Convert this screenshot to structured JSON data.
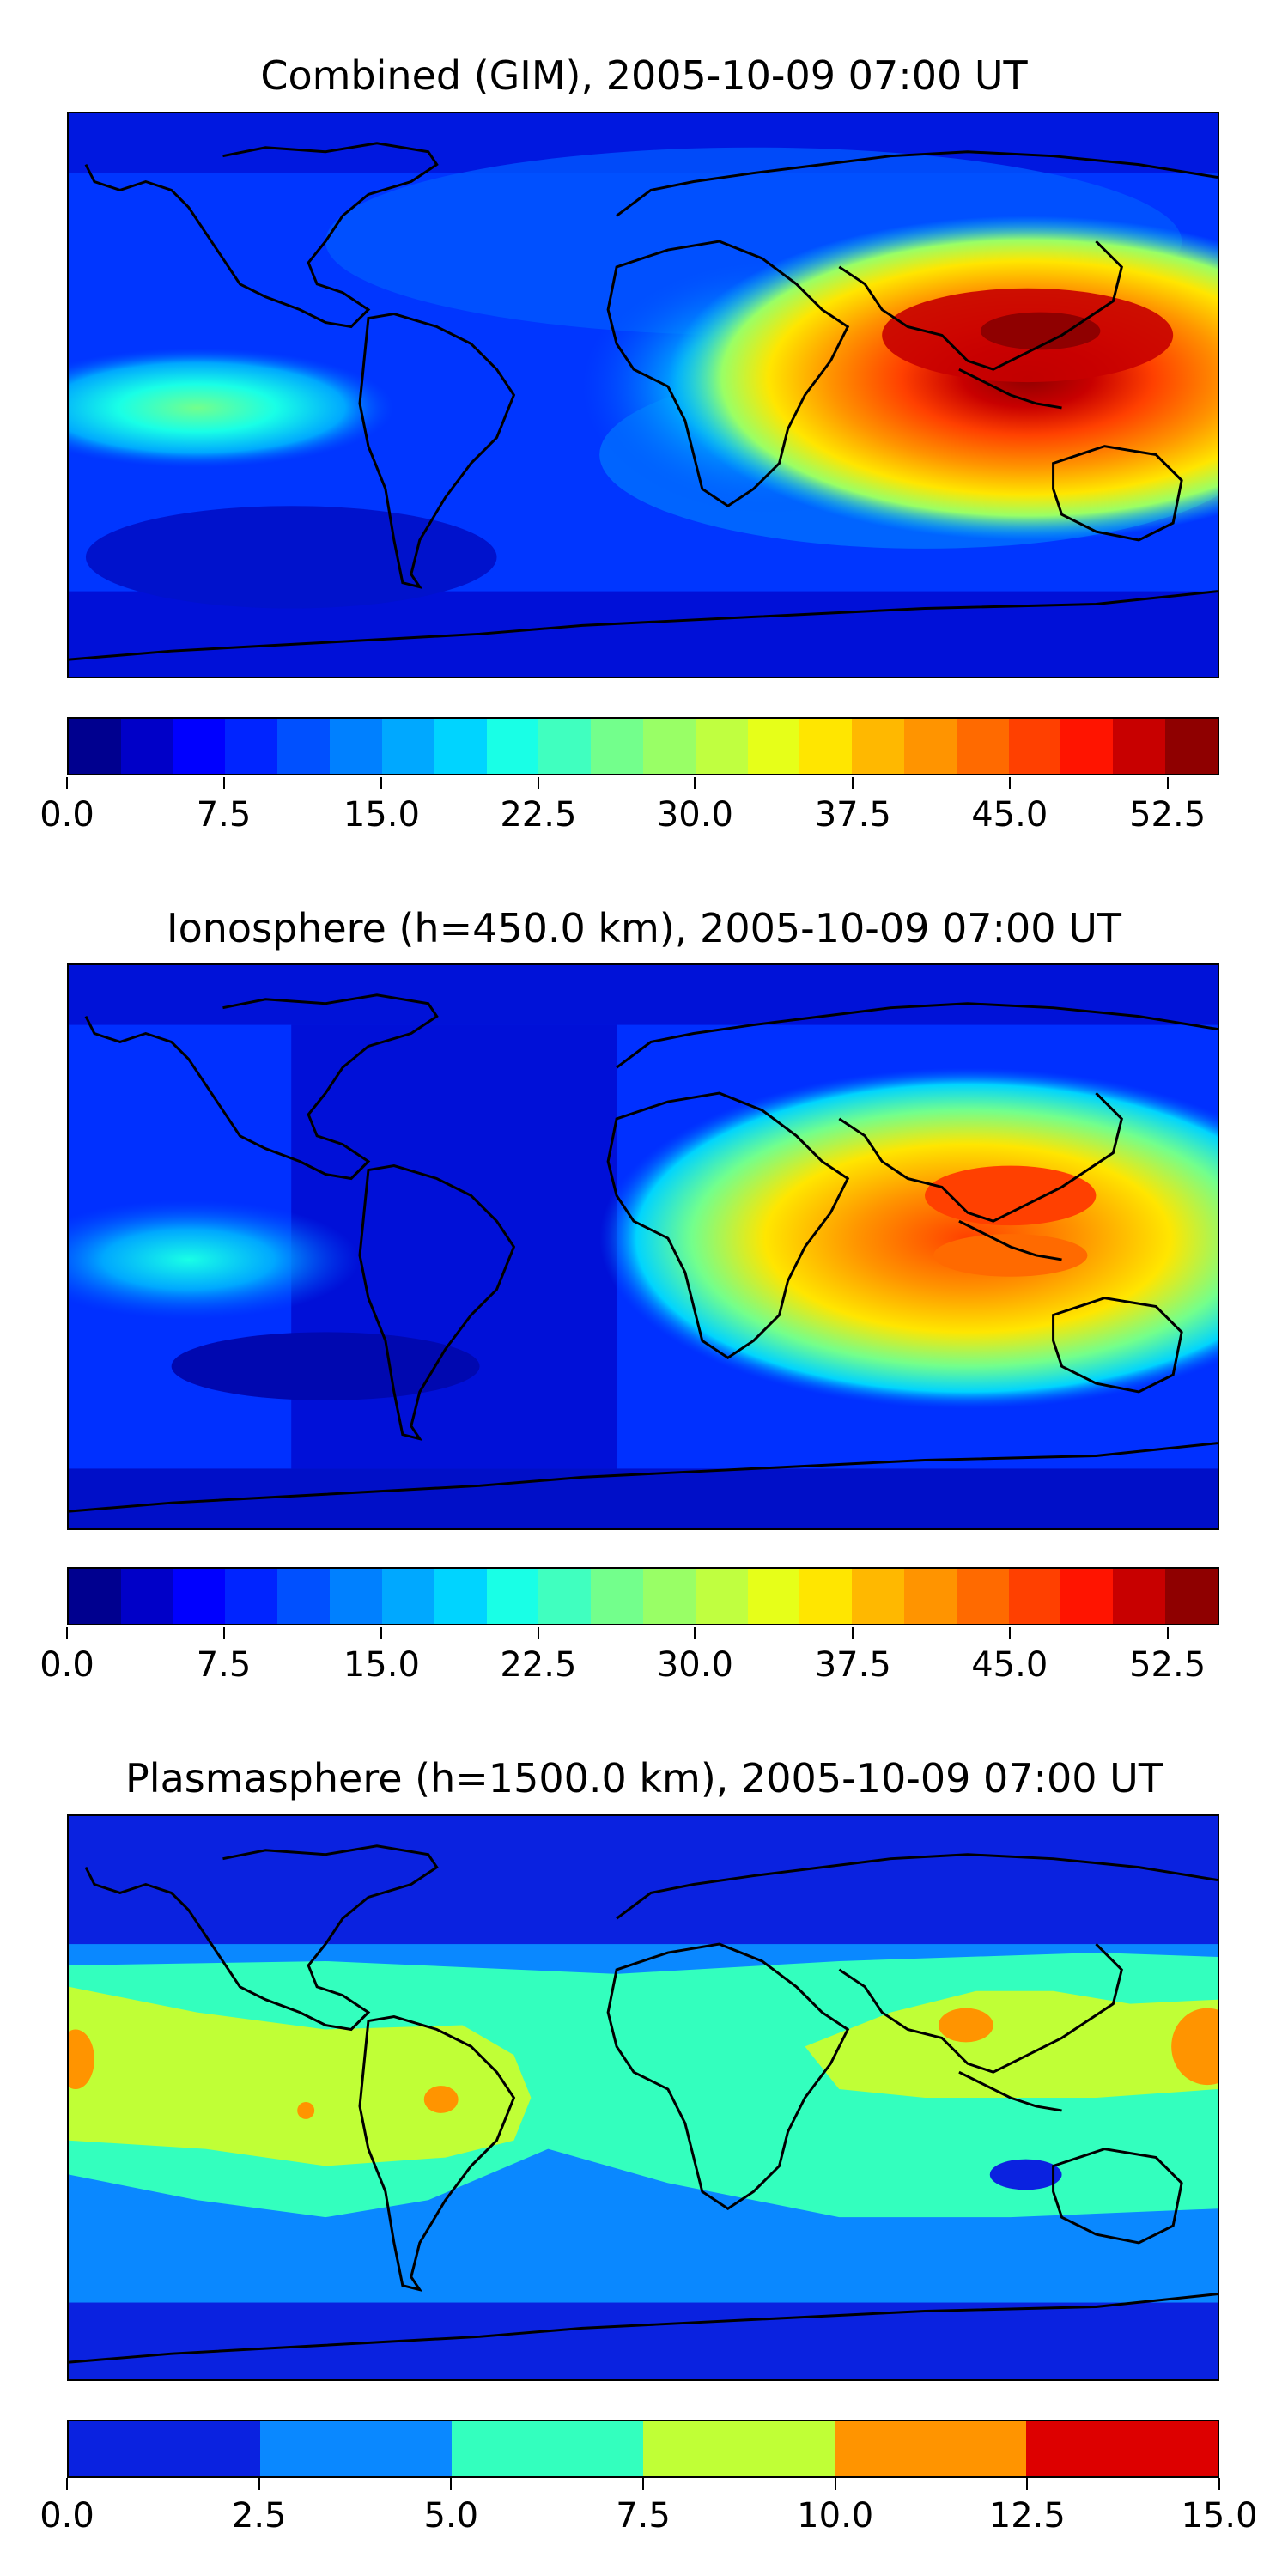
{
  "panels": [
    {
      "title": "Combined (GIM), 2005-10-09 07:00 UT",
      "colorbar": {
        "colors": [
          "#00008f",
          "#0000c8",
          "#0000ff",
          "#0024ff",
          "#0050ff",
          "#0080ff",
          "#00a8ff",
          "#00d4ff",
          "#19ffe6",
          "#40ffbf",
          "#73ff8c",
          "#99ff66",
          "#c0ff40",
          "#e6ff19",
          "#ffe600",
          "#ffb800",
          "#ff9400",
          "#ff6a00",
          "#ff4000",
          "#ff1400",
          "#c80000",
          "#8f0000"
        ],
        "tick_labels": [
          "0.0",
          "7.5",
          "15.0",
          "22.5",
          "30.0",
          "37.5",
          "45.0",
          "52.5"
        ]
      }
    },
    {
      "title": "Ionosphere  (h=450.0 km), 2005-10-09 07:00 UT",
      "colorbar": {
        "colors": [
          "#00008f",
          "#0000c8",
          "#0000ff",
          "#0024ff",
          "#0050ff",
          "#0080ff",
          "#00a8ff",
          "#00d4ff",
          "#19ffe6",
          "#40ffbf",
          "#73ff8c",
          "#99ff66",
          "#c0ff40",
          "#e6ff19",
          "#ffe600",
          "#ffb800",
          "#ff9400",
          "#ff6a00",
          "#ff4000",
          "#ff1400",
          "#c80000",
          "#8f0000"
        ],
        "tick_labels": [
          "0.0",
          "7.5",
          "15.0",
          "22.5",
          "30.0",
          "37.5",
          "45.0",
          "52.5"
        ]
      }
    },
    {
      "title": "Plasmasphere (h=1500.0 km), 2005-10-09 07:00 UT",
      "colorbar": {
        "colors": [
          "#0a22e0",
          "#0a88ff",
          "#33ffbe",
          "#c0ff36",
          "#ff9400",
          "#dd0000"
        ],
        "tick_labels": [
          "0.0",
          "2.5",
          "5.0",
          "7.5",
          "10.0",
          "12.5",
          "15.0"
        ]
      }
    }
  ]
}
